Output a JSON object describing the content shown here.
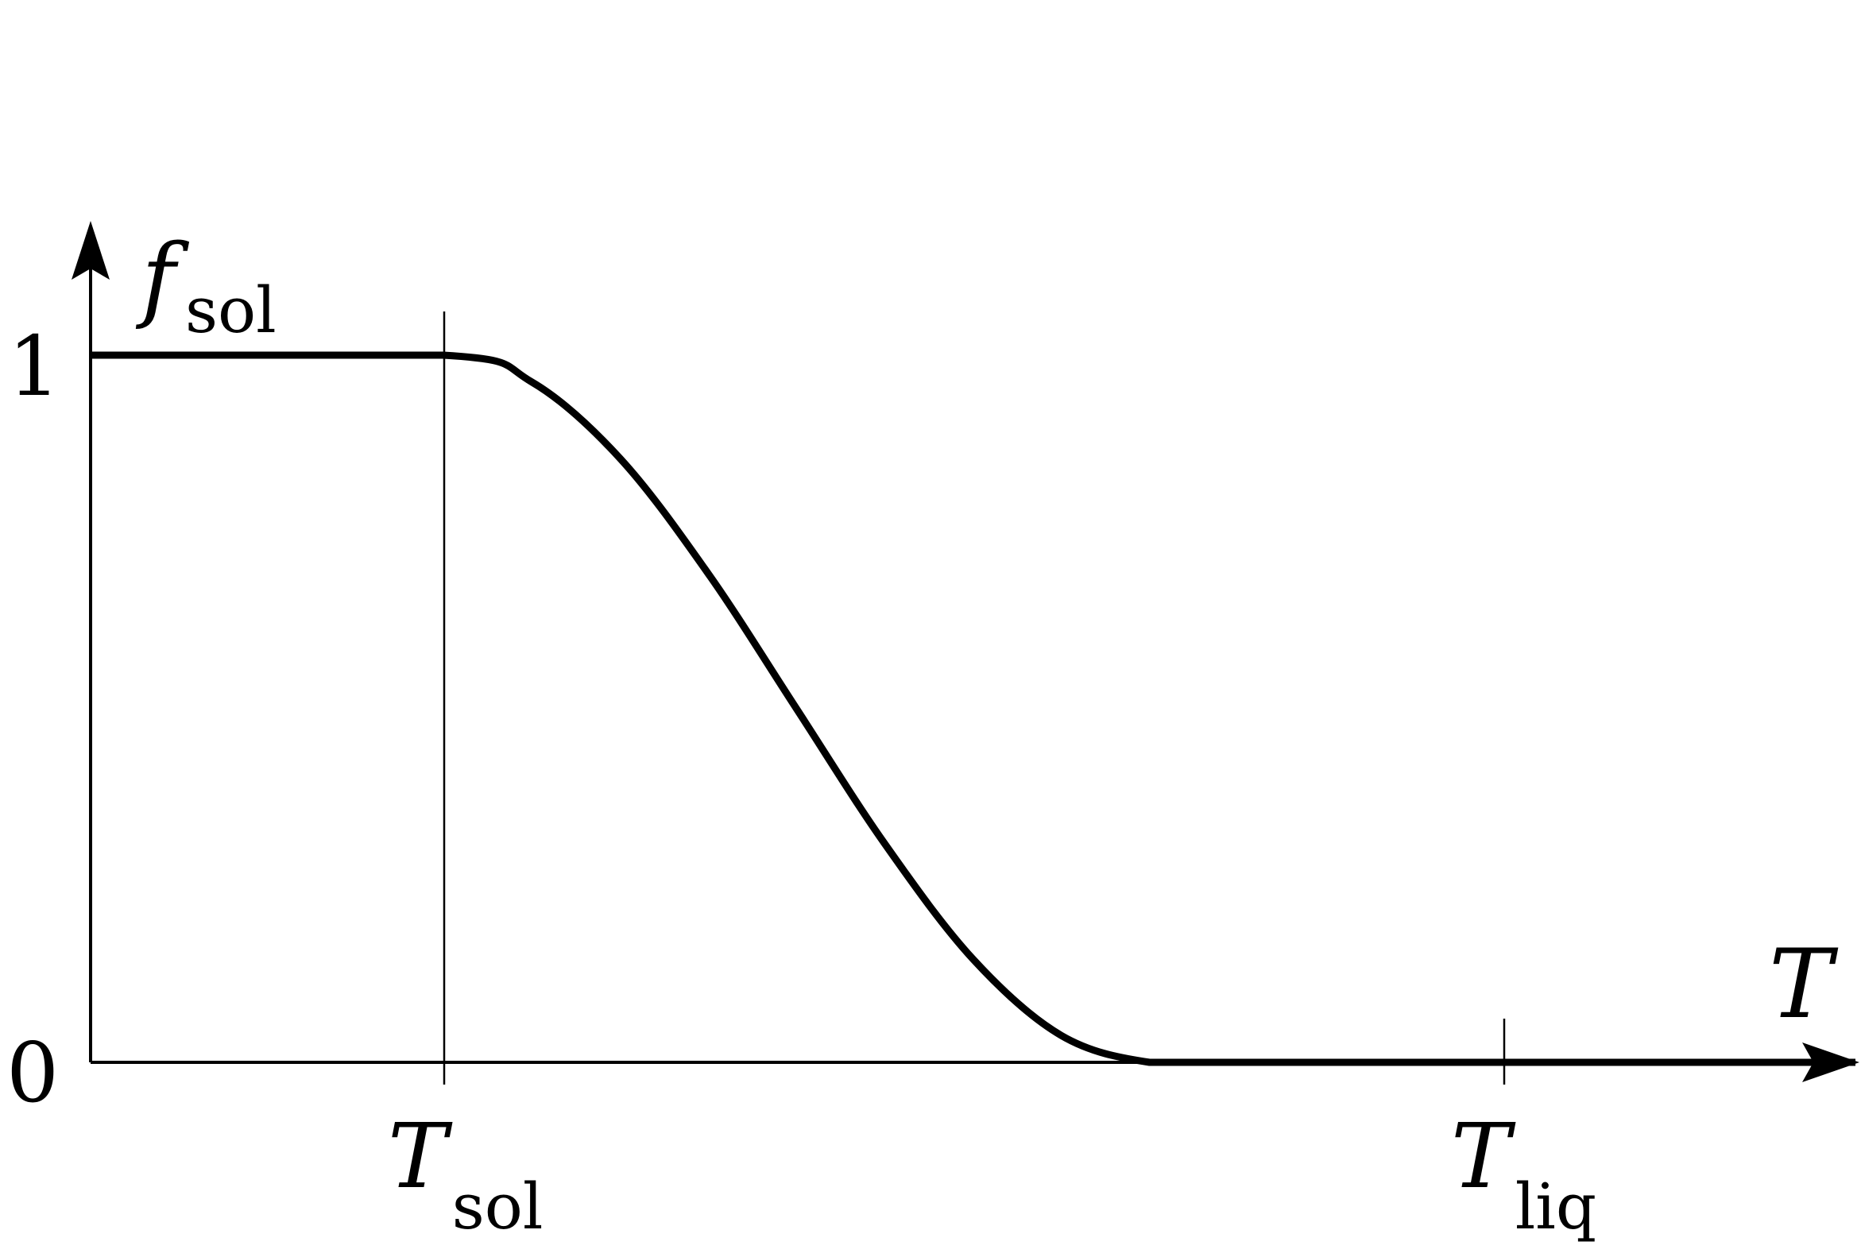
{
  "chart_data": {
    "type": "line",
    "title": "",
    "xlabel": {
      "base": "T",
      "sub": ""
    },
    "ylabel": {
      "base": "f",
      "sub": "sol"
    },
    "x_ticks": [
      {
        "value": 1,
        "base": "T",
        "sub": "sol"
      },
      {
        "value": 4,
        "base": "T",
        "sub": "liq"
      }
    ],
    "y_ticks": [
      {
        "value": 0,
        "label": "0"
      },
      {
        "value": 1,
        "label": "1"
      }
    ],
    "xlim": [
      0,
      5
    ],
    "ylim": [
      0,
      1
    ],
    "grid": false,
    "legend": "none",
    "series": [
      {
        "x": [
          0,
          1,
          1.25,
          1.5,
          1.75,
          2,
          2.25,
          2.5,
          2.75,
          3,
          3.25,
          3.5,
          3.75,
          4,
          5
        ],
        "y": [
          1,
          1,
          0.962,
          0.854,
          0.691,
          0.5,
          0.309,
          0.146,
          0.038,
          0,
          0,
          0,
          0,
          0,
          0
        ]
      }
    ],
    "annotations": [
      {
        "type": "vertical-line",
        "x": 1
      },
      {
        "type": "tick-mark",
        "x": 4
      }
    ],
    "colors": {
      "line": "#000000",
      "axis": "#000000",
      "background": "#ffffff"
    }
  }
}
